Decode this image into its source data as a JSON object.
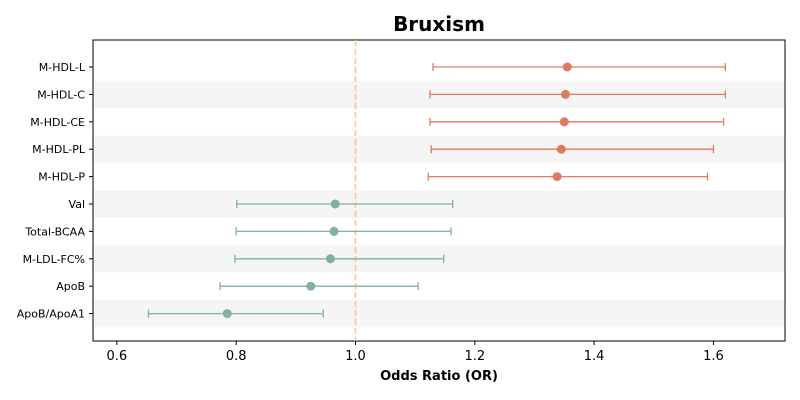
{
  "chart_data": {
    "type": "forest",
    "title": "Bruxism",
    "xlabel": "Odds Ratio (OR)",
    "xlim": [
      0.56,
      1.72
    ],
    "xticks": [
      0.6,
      0.8,
      1.0,
      1.2,
      1.4,
      1.6
    ],
    "xtick_labels": [
      "0.6",
      "0.8",
      "1.0",
      "1.2",
      "1.4",
      "1.6"
    ],
    "reference_line": 1.0,
    "colors": {
      "positive": "#e07a5f",
      "negative": "#81b29a",
      "reference": "#f2cc8f",
      "stripe": "#f5f5f5"
    },
    "rows": [
      {
        "label": "M-HDL-L",
        "or": 1.355,
        "lower": 1.13,
        "upper": 1.62,
        "direction": "positive"
      },
      {
        "label": "M-HDL-C",
        "or": 1.352,
        "lower": 1.125,
        "upper": 1.62,
        "direction": "positive"
      },
      {
        "label": "M-HDL-CE",
        "or": 1.35,
        "lower": 1.125,
        "upper": 1.617,
        "direction": "positive"
      },
      {
        "label": "M-HDL-PL",
        "or": 1.345,
        "lower": 1.127,
        "upper": 1.6,
        "direction": "positive"
      },
      {
        "label": "M-HDL-P",
        "or": 1.338,
        "lower": 1.122,
        "upper": 1.59,
        "direction": "positive"
      },
      {
        "label": "Val",
        "or": 0.966,
        "lower": 0.801,
        "upper": 1.163,
        "direction": "negative"
      },
      {
        "label": "Total-BCAA",
        "or": 0.964,
        "lower": 0.8,
        "upper": 1.16,
        "direction": "negative"
      },
      {
        "label": "M-LDL-FC%",
        "or": 0.958,
        "lower": 0.798,
        "upper": 1.148,
        "direction": "negative"
      },
      {
        "label": "ApoB",
        "or": 0.925,
        "lower": 0.773,
        "upper": 1.105,
        "direction": "negative"
      },
      {
        "label": "ApoB/ApoA1",
        "or": 0.785,
        "lower": 0.653,
        "upper": 0.946,
        "direction": "negative"
      }
    ]
  }
}
